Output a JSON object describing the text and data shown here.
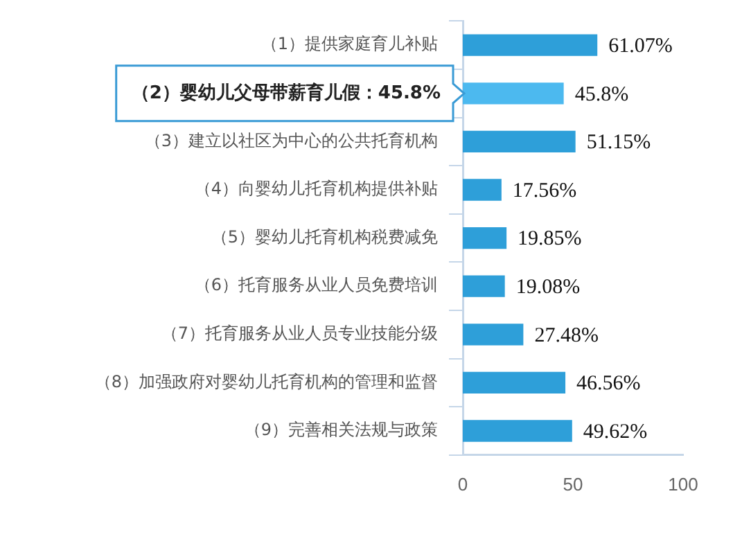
{
  "chart_data": {
    "type": "bar",
    "orientation": "horizontal",
    "categories": [
      "（1）提供家庭育儿补贴",
      null,
      "（3）建立以社区为中心的公共托育机构",
      "（4）向婴幼儿托育机构提供补贴",
      "（5）婴幼儿托育机构税费减免",
      "（6）托育服务从业人员免费培训",
      "（7）托育服务从业人员专业技能分级",
      "（8）加强政府对婴幼儿托育机构的管理和监督",
      "（9）完善相关法规与政策"
    ],
    "values": [
      61.07,
      45.8,
      51.15,
      17.56,
      19.85,
      19.08,
      27.48,
      46.56,
      49.62
    ],
    "colors": [
      "#2e9fd9",
      "#4cb9ef",
      "#2e9fd9",
      "#2e9fd9",
      "#2e9fd9",
      "#2e9fd9",
      "#2e9fd9",
      "#2e9fd9",
      "#2e9fd9"
    ],
    "value_labels": [
      "61.07%",
      "45.8%",
      "51.15%",
      "17.56%",
      "19.85%",
      "19.08%",
      "27.48%",
      "46.56%",
      "49.62%"
    ],
    "xlim": [
      0,
      100
    ],
    "xticks": [
      0,
      50,
      100
    ],
    "grid": false,
    "legend": false,
    "annotations": [
      "（2）婴幼儿父母带薪育儿假：45.8%"
    ]
  }
}
